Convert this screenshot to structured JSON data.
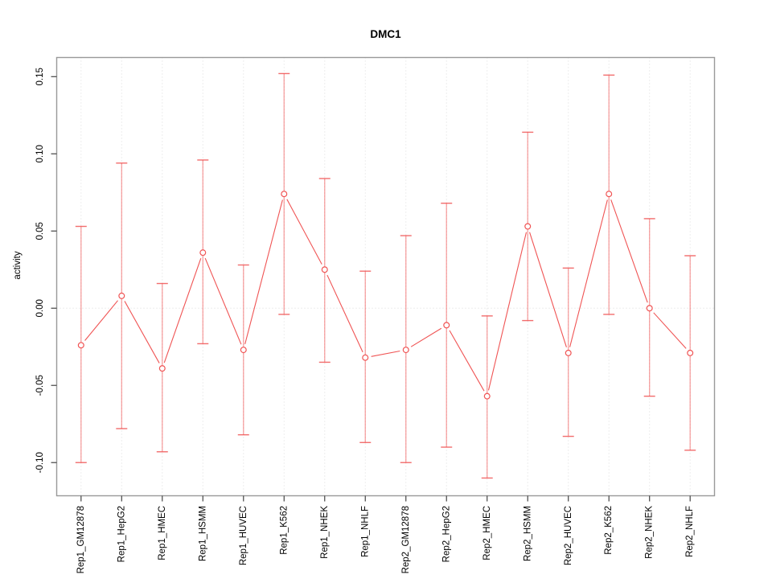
{
  "page": {
    "background": "#ffffff"
  },
  "chart_data": {
    "type": "line",
    "title": "DMC1",
    "ylabel": "activity",
    "xlabel": "",
    "legend": "none",
    "categories": [
      "Rep1_GM12878",
      "Rep1_HepG2",
      "Rep1_HMEC",
      "Rep1_HSMM",
      "Rep1_HUVEC",
      "Rep1_K562",
      "Rep1_NHEK",
      "Rep1_NHLF",
      "Rep2_GM12878",
      "Rep2_HepG2",
      "Rep2_HMEC",
      "Rep2_HSMM",
      "Rep2_HUVEC",
      "Rep2_K562",
      "Rep2_NHEK",
      "Rep2_NHLF"
    ],
    "series": [
      {
        "name": "activity",
        "marker": "open-circle",
        "values": [
          -0.024,
          0.008,
          -0.039,
          0.036,
          -0.027,
          0.074,
          0.025,
          -0.032,
          -0.027,
          -0.011,
          -0.057,
          0.053,
          -0.029,
          0.074,
          0.0,
          -0.029
        ],
        "error_high": [
          0.053,
          0.094,
          0.016,
          0.096,
          0.028,
          0.152,
          0.084,
          0.024,
          0.047,
          0.068,
          -0.005,
          0.114,
          0.026,
          0.151,
          0.058,
          0.034
        ],
        "error_low": [
          -0.1,
          -0.078,
          -0.093,
          -0.023,
          -0.082,
          -0.004,
          -0.035,
          -0.087,
          -0.1,
          -0.09,
          -0.11,
          -0.008,
          -0.083,
          -0.004,
          -0.057,
          -0.092
        ]
      }
    ],
    "ylim": [
      -0.1215,
      0.1624
    ],
    "yticks": [
      -0.1,
      -0.05,
      0.0,
      0.05,
      0.1,
      0.15
    ],
    "ytick_labels": [
      "-0.10",
      "-0.05",
      "0.00",
      "0.05",
      "0.10",
      "0.15"
    ],
    "grid": {
      "vertical_per_category": true,
      "zero_line": true,
      "style": "dotted"
    },
    "colors": {
      "series": "#f05454",
      "error_bar": "rgba(240,84,84,0.55)",
      "error_cap": "rgba(240,84,84,0.85)",
      "grid": "#dcdcdc",
      "box": "#999999",
      "tick": "#444444",
      "text": "#000000"
    }
  }
}
